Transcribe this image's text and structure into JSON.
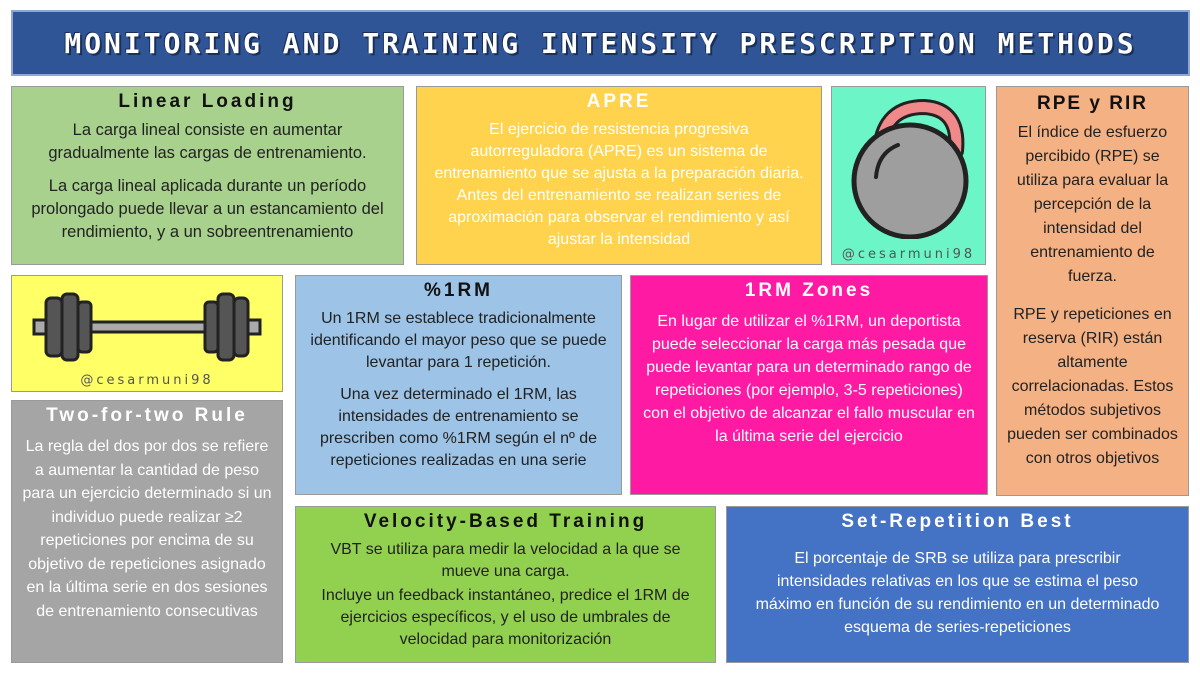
{
  "title": "MONITORING AND TRAINING INTENSITY PRESCRIPTION METHODS",
  "watermark": "@cesarmuni98",
  "linear_loading": {
    "heading": "Linear Loading",
    "p1": "La carga lineal consiste en aumentar gradualmente las cargas de entrenamiento.",
    "p2": "La carga lineal aplicada durante un período prolongado puede llevar a un estancamiento del rendimiento, y a un sobreentrenamiento"
  },
  "apre": {
    "heading": "APRE",
    "p1": "El ejercicio de resistencia progresiva autorreguladora (APRE) es un sistema de entrenamiento que se ajusta a la preparación diaria. Antes del entrenamiento se realizan series de aproximación para observar el rendimiento y así ajustar la intensidad"
  },
  "rpe": {
    "heading": "RPE y RIR",
    "p1": "El índice de esfuerzo percibido (RPE) se utiliza para evaluar la percepción de la intensidad del entrenamiento de fuerza.",
    "p2": "RPE y repeticiones en reserva (RIR) están altamente correlacionadas. Estos métodos subjetivos pueden ser combinados con otros objetivos"
  },
  "one_rm": {
    "heading": "%1RM",
    "p1": "Un 1RM se establece tradicionalmente identificando el mayor peso que se puede levantar para 1 repetición.",
    "p2": "Una vez determinado el 1RM, las intensidades de entrenamiento se prescriben como %1RM según el nº de repeticiones realizadas en una serie"
  },
  "zones": {
    "heading": "1RM Zones",
    "p1": "En lugar de utilizar el %1RM, un deportista puede seleccionar la carga más pesada que puede levantar para un determinado rango de repeticiones (por ejemplo, 3-5 repeticiones) con el objetivo de alcanzar el fallo muscular en la última serie del ejercicio"
  },
  "two_for_two": {
    "heading": "Two-for-two Rule",
    "p1": "La regla del dos por dos se refiere a aumentar la cantidad de peso para un ejercicio determinado si un individuo puede realizar ≥2 repeticiones por encima de su objetivo de repeticiones asignado en la última serie en dos sesiones de entrenamiento consecutivas"
  },
  "vbt": {
    "heading": "Velocity-Based Training",
    "p1": "VBT se utiliza para medir la velocidad a la que se mueve una carga.",
    "p2": "Incluye un feedback instantáneo, predice el 1RM de ejercicios específicos, y el uso de umbrales de velocidad para monitorización"
  },
  "srb": {
    "heading": "Set-Repetition Best",
    "p1": "El porcentaje de SRB se utiliza para prescribir intensidades relativas en los que se estima el peso máximo en función de su rendimiento en un determinado esquema de series-repeticiones"
  },
  "colors": {
    "title_bg": "#2f5597",
    "linear": "#a9d18e",
    "apre": "#ffd34d",
    "kettle": "#6cf5c6",
    "rpe": "#f4b183",
    "barbell": "#ffff66",
    "one_rm": "#9dc3e6",
    "zones": "#ff1aa3",
    "two_for_two": "#a5a5a5",
    "vbt": "#92d050",
    "srb": "#4472c4"
  },
  "icons": [
    "kettlebell-icon",
    "barbell-icon"
  ]
}
